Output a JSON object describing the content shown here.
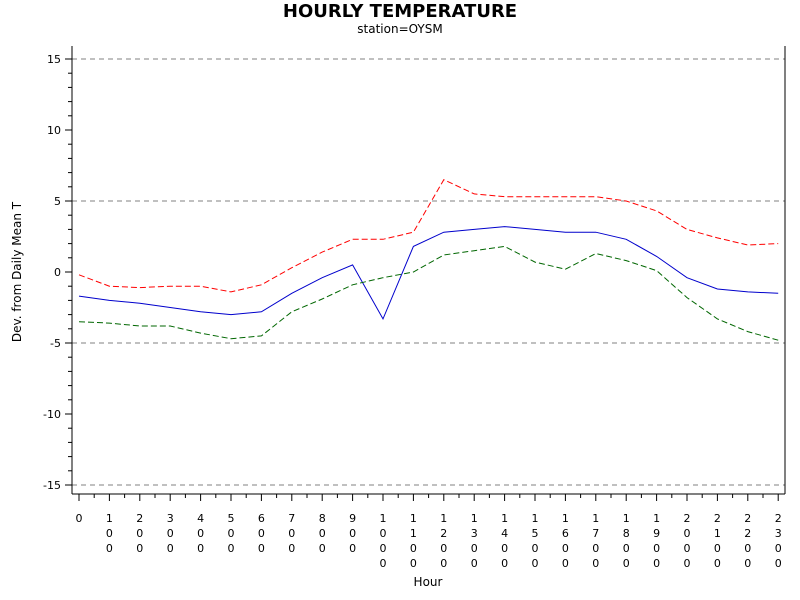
{
  "chart_data": {
    "type": "line",
    "title": "HOURLY TEMPERATURE",
    "subtitle": "station=OYSM",
    "xlabel": "Hour",
    "ylabel": "Dev. from Daily Mean T",
    "ylim": [
      -15.5,
      15.5
    ],
    "y_ticks": [
      -15,
      -10,
      -5,
      0,
      5,
      10,
      15
    ],
    "reference_lines": [
      -15,
      -5,
      5,
      15
    ],
    "x": [
      0,
      100,
      200,
      300,
      400,
      500,
      600,
      700,
      800,
      900,
      1000,
      1100,
      1200,
      1300,
      1400,
      1500,
      1600,
      1700,
      1800,
      1900,
      2000,
      2100,
      2200,
      2300
    ],
    "x_tick_labels": [
      "0",
      "100",
      "200",
      "300",
      "400",
      "500",
      "600",
      "700",
      "800",
      "900",
      "1000",
      "1100",
      "1200",
      "1300",
      "1400",
      "1500",
      "1600",
      "1700",
      "1800",
      "1900",
      "2000",
      "2100",
      "2200",
      "2300"
    ],
    "series": [
      {
        "color": "#ff0000",
        "style": "dashed",
        "values": [
          -0.2,
          -1.0,
          -1.1,
          -1.0,
          -1.0,
          -1.4,
          -0.9,
          0.3,
          1.4,
          2.3,
          2.3,
          2.8,
          6.5,
          5.5,
          5.3,
          5.3,
          5.3,
          5.3,
          5.0,
          4.3,
          3.0,
          2.4,
          1.9,
          2.0
        ]
      },
      {
        "color": "#0000cc",
        "style": "solid",
        "values": [
          -1.7,
          -2.0,
          -2.2,
          -2.5,
          -2.8,
          -3.0,
          -2.8,
          -1.5,
          -0.4,
          0.5,
          -3.3,
          1.8,
          2.8,
          3.0,
          3.2,
          3.0,
          2.8,
          2.8,
          2.3,
          1.1,
          -0.4,
          -1.2,
          -1.4,
          -1.5
        ]
      },
      {
        "color": "#006600",
        "style": "dashed",
        "values": [
          -3.5,
          -3.6,
          -3.8,
          -3.8,
          -4.3,
          -4.7,
          -4.5,
          -2.8,
          -1.9,
          -0.9,
          -0.4,
          0.0,
          1.2,
          1.5,
          1.8,
          0.7,
          0.2,
          1.3,
          0.8,
          0.1,
          -1.8,
          -3.3,
          -4.2,
          -4.8
        ]
      }
    ],
    "grid": false,
    "legend": "none",
    "colors": {
      "reference_line": "#808080",
      "axis": "#000000"
    }
  }
}
